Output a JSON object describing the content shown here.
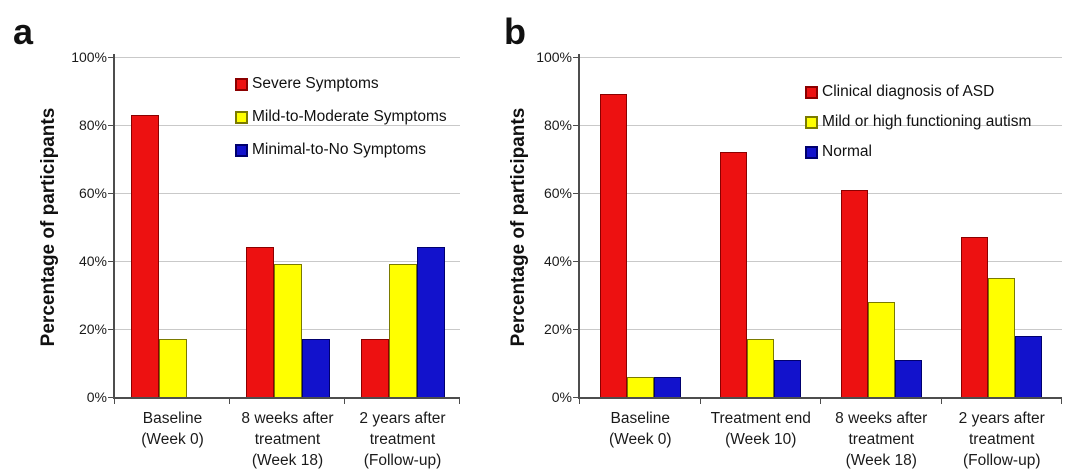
{
  "figure": {
    "background": "#ffffff",
    "ylabel_both_panels": "Percentage of participants"
  },
  "colors": {
    "red": "#ed1111",
    "red_border": "#8b0000",
    "yellow": "#ffff00",
    "yellow_border": "#7a7a00",
    "blue": "#1212cc",
    "blue_border": "#00006e",
    "grid": "#c9c9c9",
    "axis": "#4d4d4d",
    "text": "#1a1a1a"
  },
  "chart_data": [
    {
      "panel_label": "a",
      "type": "bar",
      "title": "",
      "ylabel": "Percentage of participants",
      "xlabel": "",
      "ylim": [
        0,
        100
      ],
      "yticks": [
        0,
        20,
        40,
        60,
        80,
        100
      ],
      "ytick_labels": [
        "0%",
        "20%",
        "40%",
        "60%",
        "80%",
        "100%"
      ],
      "grid": true,
      "legend_position": "top-right-inside",
      "categories": [
        [
          "Baseline",
          "(Week 0)"
        ],
        [
          "8 weeks after",
          "treatment",
          "(Week 18)"
        ],
        [
          "2 years after",
          "treatment",
          "(Follow-up)"
        ]
      ],
      "series": [
        {
          "name": "Severe Symptoms",
          "color_key": "red",
          "values": [
            83,
            44,
            17
          ]
        },
        {
          "name": "Mild-to-Moderate Symptoms",
          "color_key": "yellow",
          "values": [
            17,
            39,
            39
          ]
        },
        {
          "name": "Minimal-to-No Symptoms",
          "color_key": "blue",
          "values": [
            0,
            17,
            44
          ]
        }
      ]
    },
    {
      "panel_label": "b",
      "type": "bar",
      "title": "",
      "ylabel": "Percentage of participants",
      "xlabel": "",
      "ylim": [
        0,
        100
      ],
      "yticks": [
        0,
        20,
        40,
        60,
        80,
        100
      ],
      "ytick_labels": [
        "0%",
        "20%",
        "40%",
        "60%",
        "80%",
        "100%"
      ],
      "grid": true,
      "legend_position": "top-right-inside",
      "categories": [
        [
          "Baseline",
          "(Week 0)"
        ],
        [
          "Treatment end",
          "(Week 10)"
        ],
        [
          "8 weeks after",
          "treatment",
          "(Week 18)"
        ],
        [
          "2 years after",
          "treatment",
          "(Follow-up)"
        ]
      ],
      "series": [
        {
          "name": "Clinical diagnosis of ASD",
          "color_key": "red",
          "values": [
            89,
            72,
            61,
            47
          ]
        },
        {
          "name": "Mild or high functioning autism",
          "color_key": "yellow",
          "values": [
            6,
            17,
            28,
            35
          ]
        },
        {
          "name": "Normal",
          "color_key": "blue",
          "values": [
            6,
            11,
            11,
            18
          ]
        }
      ]
    }
  ]
}
